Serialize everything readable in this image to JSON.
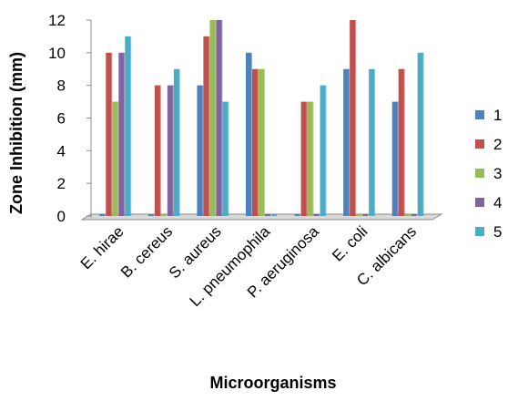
{
  "chart_data": {
    "type": "bar",
    "title": "",
    "xlabel": "Microorganisms",
    "ylabel": "Zone Inhibition (mm)",
    "ylim": [
      0,
      12
    ],
    "yticks": [
      "0",
      "2",
      "4",
      "6",
      "8",
      "10",
      "12"
    ],
    "grid": false,
    "legend_position": "right",
    "categories": [
      "E. hirae",
      "B. cereus",
      "S. aureus",
      "L. pneumophila",
      "P. aeruginosa",
      "E. coli",
      "C. albicans"
    ],
    "series": [
      {
        "name": "1",
        "color": "#4F81BD",
        "values": [
          0,
          0,
          8,
          10,
          0,
          9,
          7
        ]
      },
      {
        "name": "2",
        "color": "#C0504D",
        "values": [
          10,
          8,
          11,
          9,
          7,
          12,
          9
        ]
      },
      {
        "name": "3",
        "color": "#9BBB59",
        "values": [
          7,
          0,
          12,
          9,
          7,
          0,
          0
        ]
      },
      {
        "name": "4",
        "color": "#8064A2",
        "values": [
          10,
          8,
          12,
          0,
          0,
          0,
          0
        ]
      },
      {
        "name": "5",
        "color": "#4BACC6",
        "values": [
          11,
          9,
          7,
          0,
          8,
          9,
          10
        ]
      }
    ]
  }
}
